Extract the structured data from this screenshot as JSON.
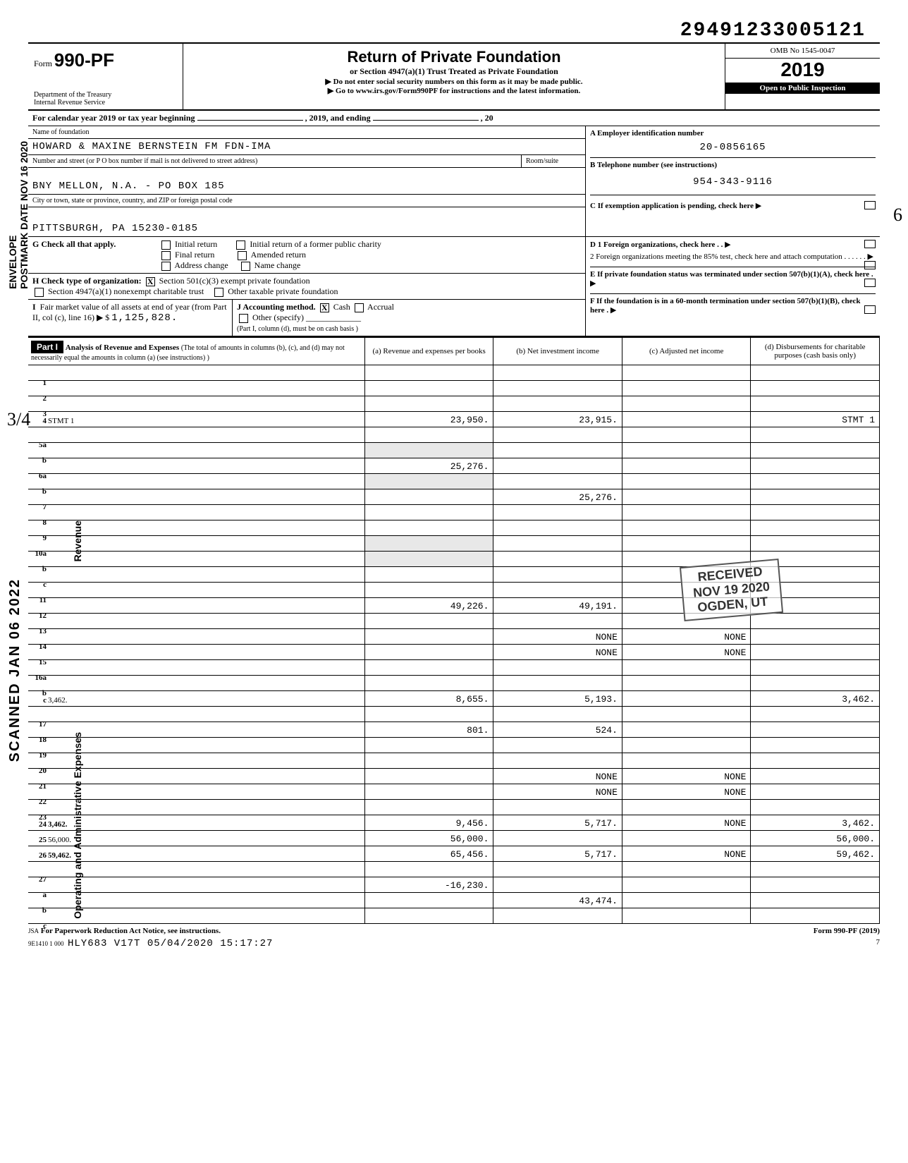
{
  "ocr_id": "29491233005121",
  "vertical1_line1": "ENVELOPE",
  "vertical1_line2": "POSTMARK DATE NOV 16 2020",
  "vertical2": "SCANNED JAN 06 2022",
  "header": {
    "form_prefix": "Form",
    "form_no": "990-PF",
    "dept": "Department of the Treasury",
    "irs": "Internal Revenue Service",
    "title": "Return of Private Foundation",
    "sub1": "or Section 4947(a)(1) Trust Treated as Private Foundation",
    "sub2": "▶ Do not enter social security numbers on this form as it may be made public.",
    "sub3": "▶ Go to www.irs.gov/Form990PF for instructions and the latest information.",
    "omb": "OMB No 1545-0047",
    "year": "2019",
    "inspection": "Open to Public Inspection"
  },
  "calyear": {
    "text": "For calendar year 2019 or tax year beginning",
    "mid": ", 2019, and ending",
    "end": ", 20"
  },
  "block_a": {
    "label_name": "Name of foundation",
    "name": "HOWARD & MAXINE BERNSTEIN FM FDN-IMA",
    "label_addr": "Number and street (or P O box number if mail is not delivered to street address)",
    "room_label": "Room/suite",
    "addr": "BNY MELLON, N.A. - PO BOX 185",
    "label_city": "City or town, state or province, country, and ZIP or foreign postal code",
    "city": "PITTSBURGH, PA 15230-0185"
  },
  "block_right": {
    "a_label": "A  Employer identification number",
    "a_val": "20-0856165",
    "b_label": "B  Telephone number (see instructions)",
    "b_val": "954-343-9116",
    "c_label": "C  If exemption application is pending, check here",
    "d1": "D 1 Foreign organizations, check here . .",
    "d2": "2 Foreign organizations meeting the 85% test, check here and attach computation . . . . . .",
    "e": "E  If private foundation status was terminated under section 507(b)(1)(A), check here .",
    "f": "F  If the foundation is in a 60-month termination under section 507(b)(1)(B), check here ."
  },
  "g": {
    "label": "G  Check all that apply.",
    "opts": [
      "Initial return",
      "Final return",
      "Address change",
      "Initial return of a former public charity",
      "Amended return",
      "Name change"
    ]
  },
  "h": {
    "label": "H  Check type of organization:",
    "opt1": "Section 501(c)(3) exempt private foundation",
    "opt2": "Section 4947(a)(1) nonexempt charitable trust",
    "opt3": "Other taxable private foundation"
  },
  "i": {
    "label": "I  Fair market value of all assets at end of year (from Part II, col (c), line 16) ▶ $",
    "val": "1,125,828."
  },
  "j": {
    "label": "J  Accounting method.",
    "cash": "Cash",
    "accrual": "Accrual",
    "other": "Other (specify)",
    "note": "(Part I, column (d), must be on cash basis )"
  },
  "part1": {
    "header": "Part I",
    "title": "Analysis of Revenue and Expenses (The total of amounts in columns (b), (c), and (d) may not necessarily equal the amounts in column (a) (see instructions) )",
    "col_a": "(a) Revenue and expenses per books",
    "col_b": "(b) Net investment income",
    "col_c": "(c) Adjusted net income",
    "col_d": "(d) Disbursements for charitable purposes (cash basis only)"
  },
  "revenue_label": "Revenue",
  "expenses_label": "Operating and Administrative Expenses",
  "lines": {
    "l1": {
      "n": "1",
      "d": "",
      "a": "",
      "b": "",
      "c": ""
    },
    "l2": {
      "n": "2",
      "d": "",
      "a": "",
      "b": "",
      "c": ""
    },
    "l3": {
      "n": "3",
      "d": "",
      "a": "",
      "b": "",
      "c": ""
    },
    "l4": {
      "n": "4",
      "d": "STMT 1",
      "a": "23,950.",
      "b": "23,915.",
      "c": ""
    },
    "l5a": {
      "n": "5a",
      "d": "",
      "a": "",
      "b": "",
      "c": ""
    },
    "l5b": {
      "n": "b",
      "d": "",
      "a": "",
      "b": "",
      "c": ""
    },
    "l6a": {
      "n": "6a",
      "d": "",
      "a": "25,276.",
      "b": "",
      "c": ""
    },
    "l6b": {
      "n": "b",
      "d": "",
      "a": "",
      "b": "",
      "c": ""
    },
    "l7": {
      "n": "7",
      "d": "",
      "a": "",
      "b": "25,276.",
      "c": ""
    },
    "l8": {
      "n": "8",
      "d": "",
      "a": "",
      "b": "",
      "c": ""
    },
    "l9": {
      "n": "9",
      "d": "",
      "a": "",
      "b": "",
      "c": ""
    },
    "l10a": {
      "n": "10a",
      "d": "",
      "a": "",
      "b": "",
      "c": ""
    },
    "l10b": {
      "n": "b",
      "d": "",
      "a": "",
      "b": "",
      "c": ""
    },
    "l10c": {
      "n": "c",
      "d": "",
      "a": "",
      "b": "",
      "c": ""
    },
    "l11": {
      "n": "11",
      "d": "",
      "a": "",
      "b": "",
      "c": ""
    },
    "l12": {
      "n": "12",
      "d": "",
      "a": "49,226.",
      "b": "49,191.",
      "c": ""
    },
    "l13": {
      "n": "13",
      "d": "",
      "a": "",
      "b": "",
      "c": ""
    },
    "l14": {
      "n": "14",
      "d": "",
      "a": "",
      "b": "NONE",
      "c": "NONE"
    },
    "l15": {
      "n": "15",
      "d": "",
      "a": "",
      "b": "NONE",
      "c": "NONE"
    },
    "l16a": {
      "n": "16a",
      "d": "",
      "a": "",
      "b": "",
      "c": ""
    },
    "l16b": {
      "n": "b",
      "d": "",
      "a": "",
      "b": "",
      "c": ""
    },
    "l16c": {
      "n": "c",
      "d": "3,462.",
      "a": "8,655.",
      "b": "5,193.",
      "c": ""
    },
    "l17": {
      "n": "17",
      "d": "",
      "a": "",
      "b": "",
      "c": ""
    },
    "l18": {
      "n": "18",
      "d": "",
      "a": "801.",
      "b": "524.",
      "c": ""
    },
    "l19": {
      "n": "19",
      "d": "",
      "a": "",
      "b": "",
      "c": ""
    },
    "l20": {
      "n": "20",
      "d": "",
      "a": "",
      "b": "",
      "c": ""
    },
    "l21": {
      "n": "21",
      "d": "",
      "a": "",
      "b": "NONE",
      "c": "NONE"
    },
    "l22": {
      "n": "22",
      "d": "",
      "a": "",
      "b": "NONE",
      "c": "NONE"
    },
    "l23": {
      "n": "23",
      "d": "",
      "a": "",
      "b": "",
      "c": ""
    },
    "l24": {
      "n": "24",
      "d": "3,462.",
      "a": "9,456.",
      "b": "5,717.",
      "c": "NONE"
    },
    "l25": {
      "n": "25",
      "d": "56,000.",
      "a": "56,000.",
      "b": "",
      "c": ""
    },
    "l26": {
      "n": "26",
      "d": "59,462.",
      "a": "65,456.",
      "b": "5,717.",
      "c": "NONE"
    },
    "l27": {
      "n": "27",
      "d": "",
      "a": "",
      "b": "",
      "c": ""
    },
    "l27a": {
      "n": "a",
      "d": "",
      "a": "-16,230.",
      "b": "",
      "c": ""
    },
    "l27b": {
      "n": "b",
      "d": "",
      "a": "",
      "b": "43,474.",
      "c": ""
    },
    "l27c": {
      "n": "c",
      "d": "",
      "a": "",
      "b": "",
      "c": ""
    }
  },
  "stamp": {
    "l1": "RECEIVED",
    "l2": "NOV 19 2020",
    "l3": "OGDEN, UT"
  },
  "footer": {
    "jsa": "JSA",
    "pra": "For Paperwork Reduction Act Notice, see instructions.",
    "code": "9E1410 1 000",
    "ts": "HLY683 V17T 05/04/2020 15:17:27",
    "formref": "Form 990-PF (2019)",
    "page": "7"
  },
  "handwriting_34": "3/4",
  "handwriting_6": "6"
}
